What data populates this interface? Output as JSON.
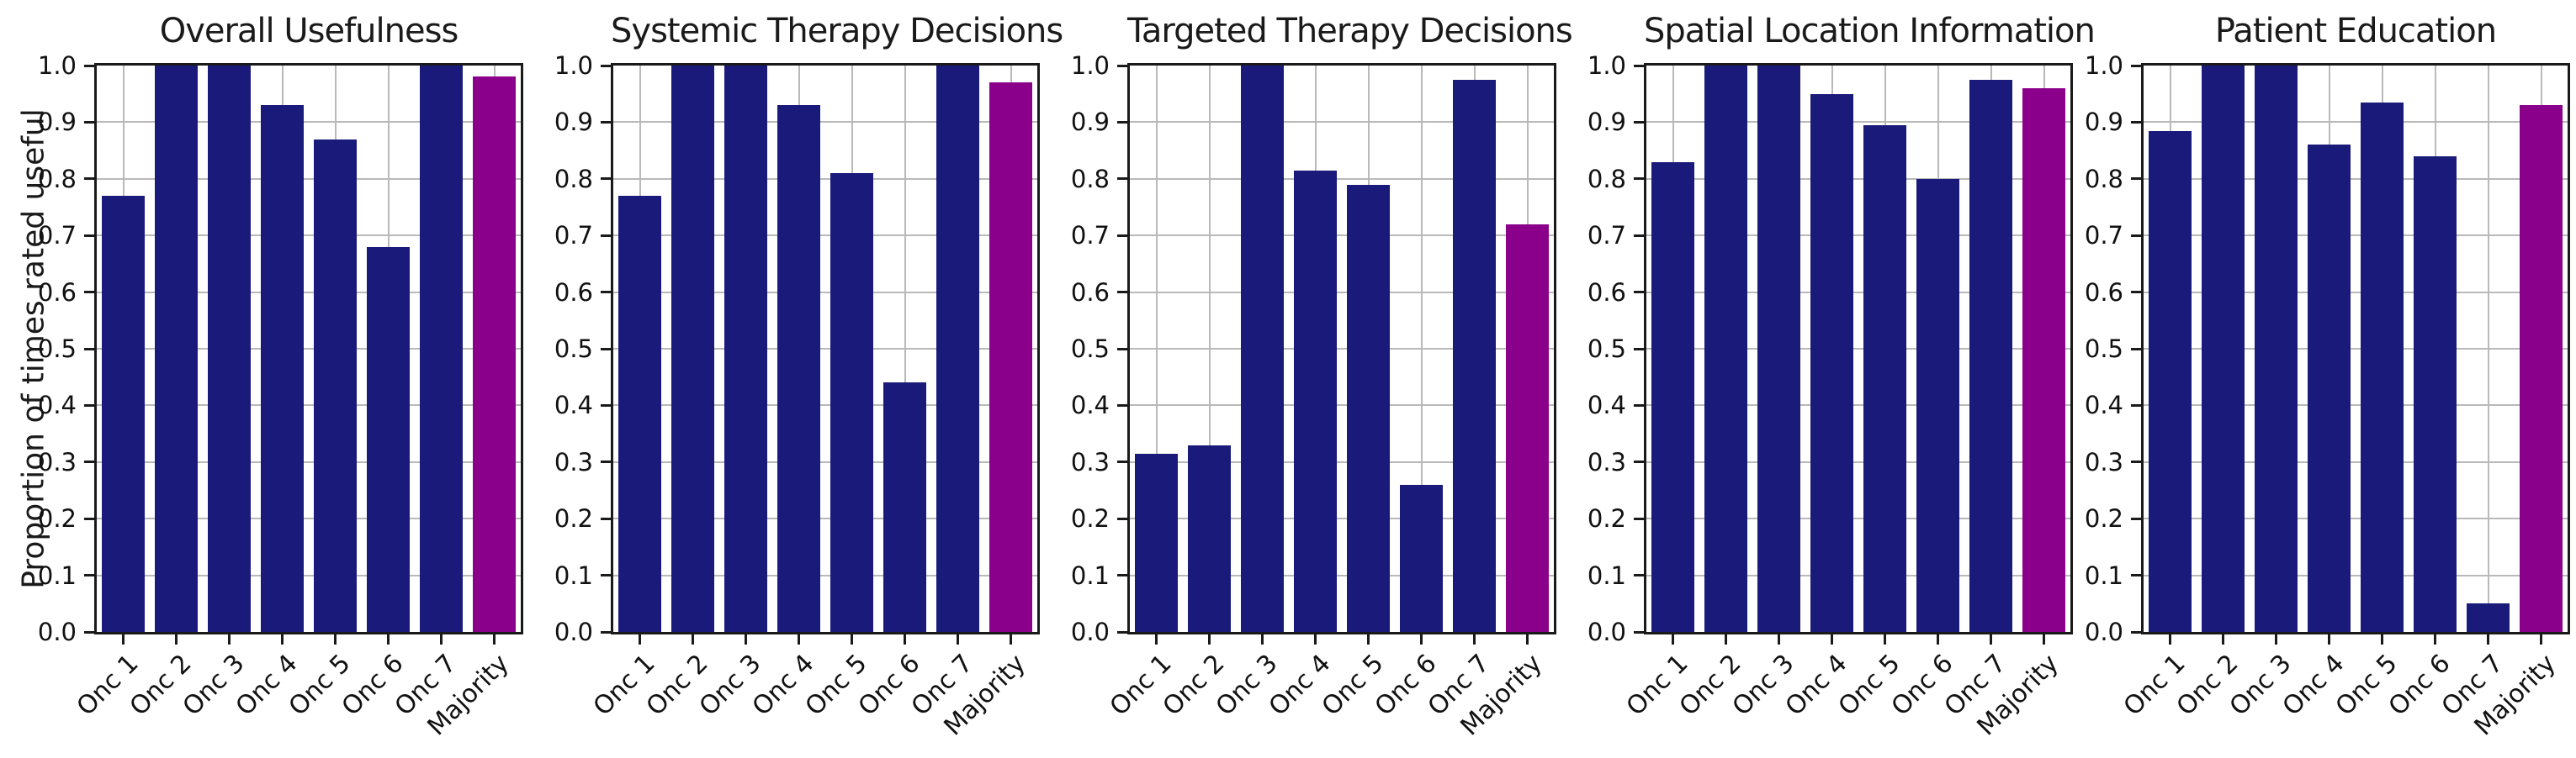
{
  "figure": {
    "ylabel": "Proportion of times rated useful",
    "bar_color": "#1a1a7a",
    "highlight_color": "#8b008b",
    "axis_color": "#1a1a1a",
    "grid_color": "#b9b9b9",
    "background": "#ffffff"
  },
  "chart_data": [
    {
      "type": "bar",
      "title": "Overall Usefulness",
      "ylabel": "Proportion of times rated useful",
      "categories": [
        "Onc 1",
        "Onc 2",
        "Onc 3",
        "Onc 4",
        "Onc 5",
        "Onc 6",
        "Onc 7",
        "Majority"
      ],
      "values": [
        0.77,
        1.0,
        1.0,
        0.93,
        0.87,
        0.68,
        1.0,
        0.98
      ],
      "ylim": [
        0.0,
        1.0
      ],
      "yticks": [
        0.0,
        0.1,
        0.2,
        0.3,
        0.4,
        0.5,
        0.6,
        0.7,
        0.8,
        0.9,
        1.0
      ],
      "grid": true,
      "legend": false,
      "highlight_category": "Majority"
    },
    {
      "type": "bar",
      "title": "Systemic Therapy Decisions",
      "ylabel": "",
      "categories": [
        "Onc 1",
        "Onc 2",
        "Onc 3",
        "Onc 4",
        "Onc 5",
        "Onc 6",
        "Onc 7",
        "Majority"
      ],
      "values": [
        0.77,
        1.0,
        1.0,
        0.93,
        0.81,
        0.44,
        1.0,
        0.97
      ],
      "ylim": [
        0.0,
        1.0
      ],
      "yticks": [
        0.0,
        0.1,
        0.2,
        0.3,
        0.4,
        0.5,
        0.6,
        0.7,
        0.8,
        0.9,
        1.0
      ],
      "grid": true,
      "legend": false,
      "highlight_category": "Majority"
    },
    {
      "type": "bar",
      "title": "Targeted Therapy Decisions",
      "ylabel": "",
      "categories": [
        "Onc 1",
        "Onc 2",
        "Onc 3",
        "Onc 4",
        "Onc 5",
        "Onc 6",
        "Onc 7",
        "Majority"
      ],
      "values": [
        0.315,
        0.33,
        1.0,
        0.815,
        0.79,
        0.26,
        0.975,
        0.72
      ],
      "ylim": [
        0.0,
        1.0
      ],
      "yticks": [
        0.0,
        0.1,
        0.2,
        0.3,
        0.4,
        0.5,
        0.6,
        0.7,
        0.8,
        0.9,
        1.0
      ],
      "grid": true,
      "legend": false,
      "highlight_category": "Majority"
    },
    {
      "type": "bar",
      "title": "Spatial Location Information",
      "ylabel": "",
      "categories": [
        "Onc 1",
        "Onc 2",
        "Onc 3",
        "Onc 4",
        "Onc 5",
        "Onc 6",
        "Onc 7",
        "Majority"
      ],
      "values": [
        0.83,
        1.0,
        1.0,
        0.95,
        0.895,
        0.8,
        0.975,
        0.96
      ],
      "ylim": [
        0.0,
        1.0
      ],
      "yticks": [
        0.0,
        0.1,
        0.2,
        0.3,
        0.4,
        0.5,
        0.6,
        0.7,
        0.8,
        0.9,
        1.0
      ],
      "grid": true,
      "legend": false,
      "highlight_category": "Majority"
    },
    {
      "type": "bar",
      "title": "Patient Education",
      "ylabel": "",
      "categories": [
        "Onc 1",
        "Onc 2",
        "Onc 3",
        "Onc 4",
        "Onc 5",
        "Onc 6",
        "Onc 7",
        "Majority"
      ],
      "values": [
        0.885,
        1.0,
        1.0,
        0.86,
        0.935,
        0.84,
        0.05,
        0.93
      ],
      "ylim": [
        0.0,
        1.0
      ],
      "yticks": [
        0.0,
        0.1,
        0.2,
        0.3,
        0.4,
        0.5,
        0.6,
        0.7,
        0.8,
        0.9,
        1.0
      ],
      "grid": true,
      "legend": false,
      "highlight_category": "Majority"
    }
  ]
}
